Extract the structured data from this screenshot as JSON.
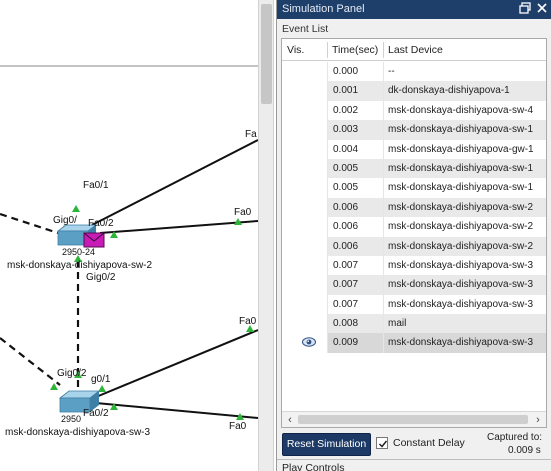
{
  "canvas": {
    "ports": {
      "fa0_top_right": "Fa",
      "fa0_1_sw2": "Fa0/1",
      "gig0_sw2": "Gig0/",
      "fa0_2_sw2": "Fa0/2",
      "fa0_right_sw2": "Fa0",
      "gig0_2_sw2": "Gig0/2",
      "fa0_mid_right": "Fa0",
      "gig0_2_sw3": "Gig0/2",
      "gig0_1_sw3": "g0/1",
      "fa0_2_sw3": "Fa0/2",
      "fa0_bottom_right": "Fa0"
    },
    "devices": {
      "sw2_model": "2950-24",
      "sw2_name": "msk-donskaya-dishiyapova-sw-2",
      "sw3_model": "2950",
      "sw3_name": "msk-donskaya-dishiyapova-sw-3"
    },
    "pdu_color": "#c71cb6",
    "switch_color": "#5b9fc4"
  },
  "panel": {
    "title": "Simulation Panel",
    "event_list_label": "Event List",
    "columns": {
      "vis": "Vis.",
      "time": "Time(sec)",
      "device": "Last Device"
    },
    "events": [
      {
        "time": "0.000",
        "device": "--",
        "visible": false
      },
      {
        "time": "0.001",
        "device": "dk-donskaya-dishiyapova-1",
        "visible": false
      },
      {
        "time": "0.002",
        "device": "msk-donskaya-dishiyapova-sw-4",
        "visible": false
      },
      {
        "time": "0.003",
        "device": "msk-donskaya-dishiyapova-sw-1",
        "visible": false
      },
      {
        "time": "0.004",
        "device": "msk-donskaya-dishiyapova-gw-1",
        "visible": false
      },
      {
        "time": "0.005",
        "device": "msk-donskaya-dishiyapova-sw-1",
        "visible": false
      },
      {
        "time": "0.005",
        "device": "msk-donskaya-dishiyapova-sw-1",
        "visible": false
      },
      {
        "time": "0.006",
        "device": "msk-donskaya-dishiyapova-sw-2",
        "visible": false
      },
      {
        "time": "0.006",
        "device": "msk-donskaya-dishiyapova-sw-2",
        "visible": false
      },
      {
        "time": "0.006",
        "device": "msk-donskaya-dishiyapova-sw-2",
        "visible": false
      },
      {
        "time": "0.007",
        "device": "msk-donskaya-dishiyapova-sw-3",
        "visible": false
      },
      {
        "time": "0.007",
        "device": "msk-donskaya-dishiyapova-sw-3",
        "visible": false
      },
      {
        "time": "0.007",
        "device": "msk-donskaya-dishiyapova-sw-3",
        "visible": false
      },
      {
        "time": "0.008",
        "device": "mail",
        "visible": false
      },
      {
        "time": "0.009",
        "device": "msk-donskaya-dishiyapova-sw-3",
        "visible": true
      }
    ],
    "reset_button": "Reset Simulation",
    "constant_delay_label": "Constant Delay",
    "constant_delay_checked": true,
    "captured_label": "Captured to:",
    "captured_value": "0.009 s",
    "play_controls_label": "Play Controls",
    "accent_color": "#1d3a66"
  }
}
